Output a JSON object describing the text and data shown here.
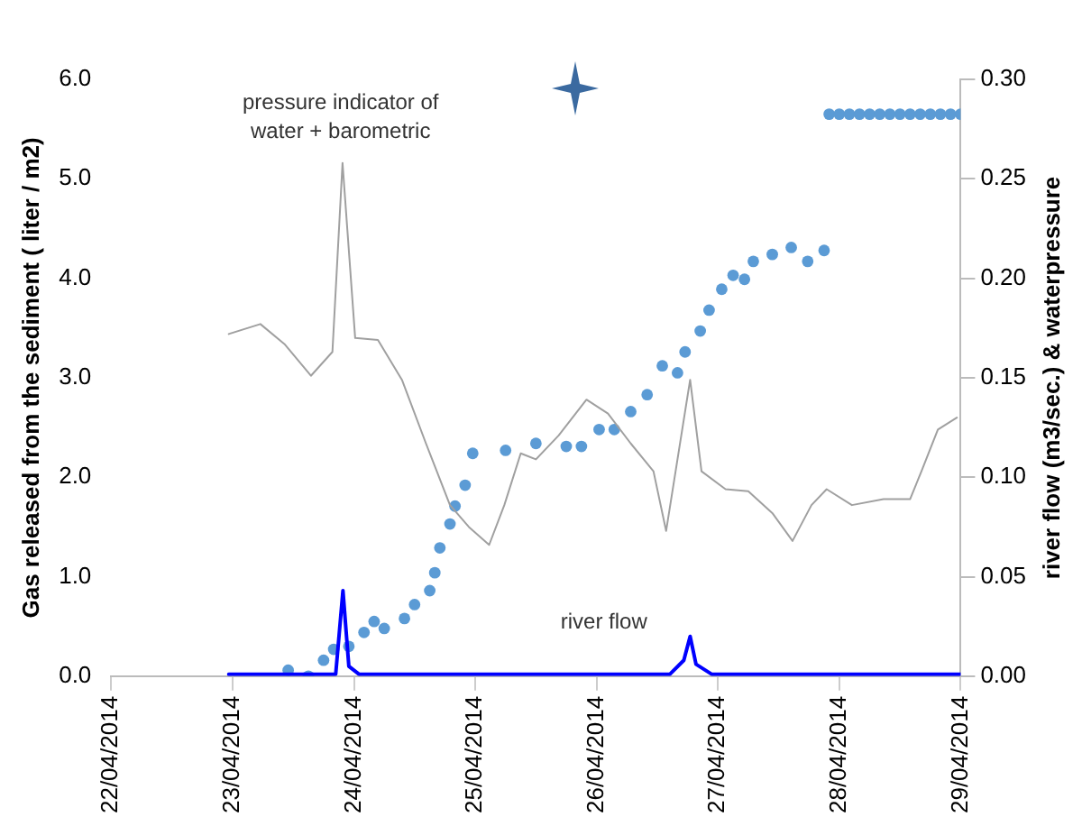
{
  "chart_data": {
    "type": "scatter",
    "ylabel": "Gas released from the sediment ( liter / m2)",
    "y2label": "river flow (m3/sec.) & waterpressure",
    "xlim": [
      "2014-04-22",
      "2014-04-29"
    ],
    "xticks": [
      {
        "value": "2014-04-22",
        "label": "22/04/2014"
      },
      {
        "value": "2014-04-23",
        "label": "23/04/2014"
      },
      {
        "value": "2014-04-24",
        "label": "24/04/2014"
      },
      {
        "value": "2014-04-25",
        "label": "25/04/2014"
      },
      {
        "value": "2014-04-26",
        "label": "26/04/2014"
      },
      {
        "value": "2014-04-27",
        "label": "27/04/2014"
      },
      {
        "value": "2014-04-28",
        "label": "28/04/2014"
      },
      {
        "value": "2014-04-29",
        "label": "29/04/2014"
      }
    ],
    "ylim": [
      0,
      6
    ],
    "yticks": [
      {
        "value": 0,
        "label": "0.0"
      },
      {
        "value": 1,
        "label": "1.0"
      },
      {
        "value": 2,
        "label": "2.0"
      },
      {
        "value": 3,
        "label": "3.0"
      },
      {
        "value": 4,
        "label": "4.0"
      },
      {
        "value": 5,
        "label": "5.0"
      },
      {
        "value": 6,
        "label": "6.0"
      }
    ],
    "y2lim": [
      0,
      0.3
    ],
    "y2ticks": [
      {
        "value": 0,
        "label": "0.00"
      },
      {
        "value": 0.05,
        "label": "0.05"
      },
      {
        "value": 0.1,
        "label": "0.10"
      },
      {
        "value": 0.15,
        "label": "0.15"
      },
      {
        "value": 0.2,
        "label": "0.20"
      },
      {
        "value": 0.25,
        "label": "0.25"
      },
      {
        "value": 0.3,
        "label": "0.30"
      }
    ],
    "grid": false,
    "legend": false,
    "annotations": [
      "pressure indicator of\nwater + barometric",
      "river flow"
    ],
    "series": [
      {
        "type": "line",
        "axis": "y2",
        "color": "#a0a0a0",
        "marker": "none",
        "x": [
          "2014-04-22T23:15",
          "2014-04-23T05:30",
          "2014-04-23T10:15",
          "2014-04-23T15:30",
          "2014-04-23T19:45",
          "2014-04-23T21:45",
          "2014-04-24T00:15",
          "2014-04-24T04:45",
          "2014-04-24T09:30",
          "2014-04-24T14:15",
          "2014-04-24T19:00",
          "2014-04-24T22:45",
          "2014-04-25T02:45",
          "2014-04-25T05:45",
          "2014-04-25T09:00",
          "2014-04-25T12:00",
          "2014-04-25T16:30",
          "2014-04-25T22:00",
          "2014-04-26T02:15",
          "2014-04-26T06:45",
          "2014-04-26T11:15",
          "2014-04-26T13:45",
          "2014-04-26T18:30",
          "2014-04-26T20:45",
          "2014-04-27T01:30",
          "2014-04-27T06:00",
          "2014-04-27T10:45",
          "2014-04-27T14:45",
          "2014-04-27T18:30",
          "2014-04-27T21:30",
          "2014-04-28T02:30",
          "2014-04-28T08:45",
          "2014-04-28T14:00",
          "2014-04-28T16:15",
          "2014-04-28T19:30",
          "2014-04-28T23:15"
        ],
        "values": [
          0.172,
          0.177,
          0.167,
          0.151,
          0.163,
          0.258,
          0.17,
          0.169,
          0.149,
          0.117,
          0.086,
          0.075,
          0.066,
          0.086,
          0.112,
          0.109,
          0.121,
          0.139,
          0.132,
          0.117,
          0.103,
          0.073,
          0.149,
          0.103,
          0.094,
          0.093,
          0.082,
          0.068,
          0.086,
          0.094,
          0.086,
          0.089,
          0.089,
          0.103,
          0.124,
          0.13
        ]
      },
      {
        "axis": "y",
        "color": "#5b9bd5",
        "marker": "circle",
        "x": [
          "2014-04-23T11:00",
          "2014-04-23T15:00",
          "2014-04-23T18:00",
          "2014-04-23T20:00",
          "2014-04-23T23:00",
          "2014-04-24T02:00",
          "2014-04-24T04:00",
          "2014-04-24T06:00",
          "2014-04-24T10:00",
          "2014-04-24T12:00",
          "2014-04-24T15:00",
          "2014-04-24T16:00",
          "2014-04-24T17:00",
          "2014-04-24T19:00",
          "2014-04-24T20:00",
          "2014-04-24T22:00",
          "2014-04-24T23:30",
          "2014-04-25T06:00",
          "2014-04-25T12:00",
          "2014-04-25T18:00",
          "2014-04-25T21:00",
          "2014-04-26T00:30",
          "2014-04-26T03:30",
          "2014-04-26T06:45",
          "2014-04-26T10:00",
          "2014-04-26T13:00",
          "2014-04-26T16:00",
          "2014-04-26T17:30",
          "2014-04-26T20:30",
          "2014-04-26T22:15",
          "2014-04-27T00:45",
          "2014-04-27T03:00",
          "2014-04-27T05:15",
          "2014-04-27T07:00",
          "2014-04-27T10:45",
          "2014-04-27T14:30",
          "2014-04-27T17:45",
          "2014-04-27T21:00"
        ],
        "values": [
          0.06,
          0,
          0.16,
          0.27,
          0.3,
          0.44,
          0.55,
          0.48,
          0.58,
          0.72,
          0.86,
          1.04,
          1.29,
          1.53,
          1.71,
          1.92,
          2.24,
          2.27,
          2.34,
          2.31,
          2.31,
          2.48,
          2.48,
          2.66,
          2.83,
          3.12,
          3.05,
          3.26,
          3.47,
          3.68,
          3.89,
          4.03,
          3.99,
          4.17,
          4.24,
          4.31,
          4.17,
          4.28
        ]
      },
      {
        "axis": "y",
        "color": "#5b9bd5",
        "marker": "circle",
        "x": [
          "2014-04-27T22:00",
          "2014-04-28T00:00",
          "2014-04-28T02:00",
          "2014-04-28T04:00",
          "2014-04-28T06:00",
          "2014-04-28T08:00",
          "2014-04-28T10:00",
          "2014-04-28T12:00",
          "2014-04-28T14:00",
          "2014-04-28T16:00",
          "2014-04-28T18:00",
          "2014-04-28T20:00",
          "2014-04-28T22:00",
          "2014-04-29T00:00"
        ],
        "values": [
          5.65,
          5.65,
          5.65,
          5.65,
          5.65,
          5.65,
          5.65,
          5.65,
          5.65,
          5.65,
          5.65,
          5.65,
          5.65,
          5.65
        ]
      },
      {
        "type": "line",
        "axis": "y2",
        "color": "#0000ff",
        "marker": "none",
        "x": [
          "2014-04-22T23:15",
          "2014-04-23T20:24",
          "2014-04-23T21:50",
          "2014-04-23T23:00",
          "2014-04-24T01:00",
          "2014-04-26T14:30",
          "2014-04-26T17:15",
          "2014-04-26T18:30",
          "2014-04-26T19:40",
          "2014-04-26T22:45",
          "2014-04-29T00:00"
        ],
        "values": [
          0.001,
          0.001,
          0.043,
          0.005,
          0.001,
          0.001,
          0.008,
          0.02,
          0.006,
          0.001,
          0.001
        ]
      }
    ]
  }
}
